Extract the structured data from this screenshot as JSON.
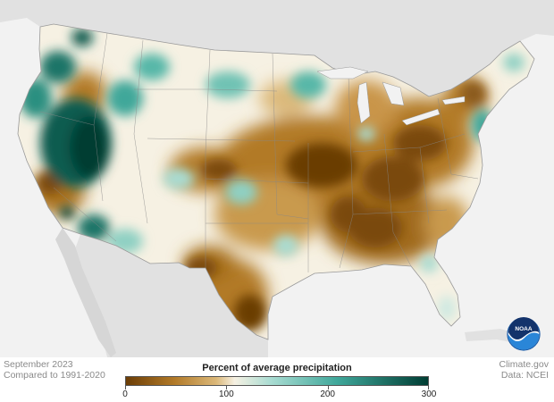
{
  "footer": {
    "date": "September 2023",
    "baseline": "Compared to 1991-2020",
    "credit": "Climate.gov",
    "source": "Data: NCEI"
  },
  "legend": {
    "title": "Percent of average precipitation",
    "ticks": [
      "0",
      "100",
      "200",
      "300"
    ],
    "tick_values": [
      0,
      100,
      200,
      300
    ],
    "range": [
      0,
      300
    ],
    "colors": {
      "dry_dark": "#6b3d06",
      "dry": "#b27a28",
      "dry_light": "#dcb97a",
      "near_avg": "#f6f1e3",
      "wet_light": "#a9dcd2",
      "wet": "#3fa79a",
      "wet_dark": "#003d33"
    }
  },
  "logo": {
    "text": "NOAA",
    "icon": "noaa-logo-icon"
  },
  "map": {
    "region": "Contiguous United States",
    "land_color": "#f6f1e3",
    "surroundings_color": "#e1e1e1",
    "ocean_color": "#f2f2f2"
  }
}
